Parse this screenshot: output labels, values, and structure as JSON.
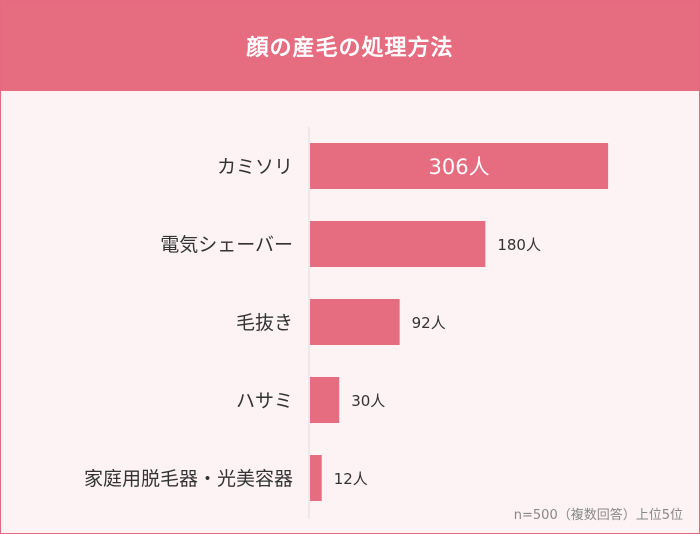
{
  "title": "顔の産毛の処理方法",
  "note": "n=500（複数回答）上位5位",
  "colors": {
    "header": "#e66d80",
    "bar": "#e66d80",
    "background": "#fdf3f5",
    "axis": "#dddddd"
  },
  "chart_data": {
    "type": "bar",
    "orientation": "horizontal",
    "categories": [
      "カミソリ",
      "電気シェーバー",
      "毛抜き",
      "ハサミ",
      "家庭用脱毛器・光美容器"
    ],
    "values": [
      306,
      180,
      92,
      30,
      12
    ],
    "unit": "人",
    "xlim": [
      0,
      310
    ],
    "grid": false,
    "title": "顔の産毛の処理方法"
  }
}
